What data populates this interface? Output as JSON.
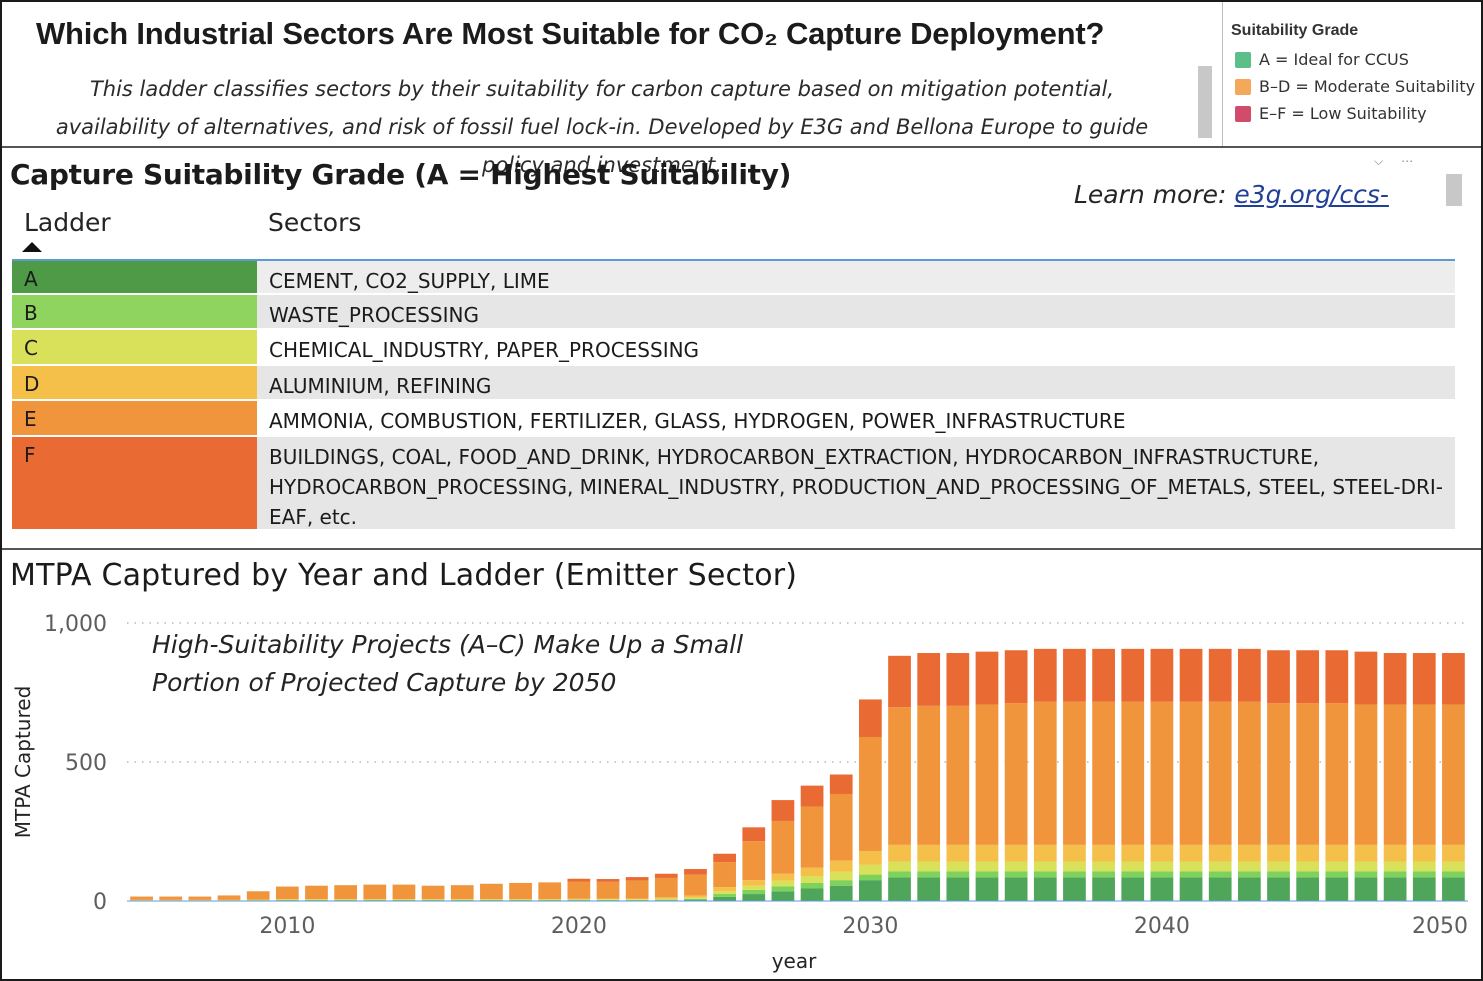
{
  "header": {
    "title": "Which Industrial Sectors Are Most Suitable for CO₂ Capture Deployment?",
    "subtitle": "This ladder classifies sectors by their suitability for carbon capture based on mitigation potential, availability of alternatives, and risk of fossil fuel lock-in. Developed by E3G and Bellona Europe to guide policy and investment."
  },
  "legend": {
    "title": "Suitability Grade",
    "items": [
      {
        "label": "A = Ideal for CCUS",
        "color": "#5cbf8a"
      },
      {
        "label": "B–D = Moderate Suitability",
        "color": "#f4a95a"
      },
      {
        "label": "E–F = Low Suitability",
        "color": "#d14b6a"
      }
    ]
  },
  "table": {
    "title": "Capture Suitability Grade (A = Highest Suitability)",
    "learn_more_prefix": "Learn more: ",
    "learn_more_link": "e3g.org/ccs-",
    "columns": [
      "Ladder",
      "Sectors"
    ],
    "rows": [
      {
        "ladder": "A",
        "color": "#4e9a47",
        "sectors": "CEMENT, CO2_SUPPLY, LIME"
      },
      {
        "ladder": "B",
        "color": "#8fd45e",
        "sectors": "WASTE_PROCESSING"
      },
      {
        "ladder": "C",
        "color": "#d9e05a",
        "sectors": "CHEMICAL_INDUSTRY, PAPER_PROCESSING"
      },
      {
        "ladder": "D",
        "color": "#f5c04a",
        "sectors": "ALUMINIUM, REFINING"
      },
      {
        "ladder": "E",
        "color": "#f1953d",
        "sectors": "AMMONIA, COMBUSTION, FERTILIZER, GLASS, HYDROGEN, POWER_INFRASTRUCTURE"
      },
      {
        "ladder": "F",
        "color": "#e96a33",
        "sectors": "BUILDINGS, COAL, FOOD_AND_DRINK, HYDROCARBON_EXTRACTION, HYDROCARBON_INFRASTRUCTURE, HYDROCARBON_PROCESSING, MINERAL_INDUSTRY, PRODUCTION_AND_PROCESSING_OF_METALS, STEEL, STEEL-DRI-EAF, etc."
      }
    ]
  },
  "chart_data": {
    "type": "bar",
    "stacked": true,
    "title": "MTPA Captured by Year and Ladder (Emitter Sector)",
    "annotation": "High-Suitability Projects (A–C) Make Up a Small Portion of Projected Capture by 2050",
    "xlabel": "year",
    "ylabel": "MTPA Captured",
    "ylim": [
      0,
      1000
    ],
    "yticks": [
      0,
      500,
      1000
    ],
    "ytick_labels": [
      "0",
      "500",
      "1,000"
    ],
    "xticks": [
      2010,
      2020,
      2030,
      2040,
      2050
    ],
    "x": [
      2005,
      2006,
      2007,
      2008,
      2009,
      2010,
      2011,
      2012,
      2013,
      2014,
      2015,
      2016,
      2017,
      2018,
      2019,
      2020,
      2021,
      2022,
      2023,
      2024,
      2025,
      2026,
      2027,
      2028,
      2029,
      2030,
      2031,
      2032,
      2033,
      2034,
      2035,
      2036,
      2037,
      2038,
      2039,
      2040,
      2041,
      2042,
      2043,
      2044,
      2045,
      2046,
      2047,
      2048,
      2049,
      2050
    ],
    "series": [
      {
        "name": "A",
        "color": "#4fa65a",
        "values": [
          1,
          1,
          1,
          1,
          2,
          2,
          2,
          2,
          2,
          2,
          2,
          2,
          2,
          2,
          2,
          2,
          2,
          2,
          3,
          5,
          15,
          25,
          35,
          45,
          55,
          75,
          85,
          85,
          85,
          85,
          85,
          85,
          85,
          85,
          85,
          85,
          85,
          85,
          85,
          85,
          85,
          85,
          85,
          85,
          85,
          85
        ]
      },
      {
        "name": "B",
        "color": "#7ed15a",
        "values": [
          1,
          1,
          1,
          1,
          1,
          2,
          2,
          2,
          2,
          2,
          2,
          2,
          2,
          2,
          2,
          2,
          2,
          2,
          2,
          3,
          10,
          15,
          18,
          20,
          20,
          20,
          22,
          22,
          22,
          22,
          22,
          22,
          22,
          22,
          22,
          22,
          22,
          22,
          22,
          22,
          22,
          22,
          22,
          22,
          22,
          22
        ]
      },
      {
        "name": "C",
        "color": "#d9e05a",
        "values": [
          1,
          1,
          1,
          1,
          1,
          1,
          1,
          1,
          1,
          1,
          1,
          1,
          1,
          1,
          1,
          1,
          2,
          2,
          3,
          4,
          10,
          15,
          20,
          25,
          30,
          35,
          35,
          35,
          35,
          35,
          35,
          35,
          35,
          35,
          35,
          35,
          35,
          35,
          35,
          35,
          35,
          35,
          35,
          35,
          35,
          35
        ]
      },
      {
        "name": "D",
        "color": "#f5c04a",
        "values": [
          1,
          1,
          1,
          1,
          1,
          2,
          2,
          2,
          2,
          2,
          2,
          2,
          2,
          2,
          2,
          3,
          3,
          3,
          5,
          8,
          15,
          20,
          25,
          30,
          40,
          50,
          60,
          60,
          60,
          60,
          60,
          60,
          60,
          60,
          60,
          60,
          60,
          60,
          60,
          60,
          60,
          60,
          60,
          60,
          60,
          60
        ]
      },
      {
        "name": "E",
        "color": "#f1953d",
        "values": [
          12,
          12,
          12,
          16,
          30,
          45,
          48,
          50,
          52,
          52,
          48,
          50,
          55,
          58,
          60,
          62,
          60,
          65,
          70,
          75,
          90,
          140,
          190,
          220,
          240,
          410,
          495,
          500,
          500,
          505,
          510,
          515,
          515,
          515,
          515,
          515,
          515,
          515,
          515,
          510,
          510,
          510,
          505,
          505,
          505,
          505
        ]
      },
      {
        "name": "F",
        "color": "#e96a33",
        "values": [
          0,
          0,
          0,
          0,
          0,
          0,
          0,
          0,
          0,
          0,
          0,
          0,
          0,
          0,
          0,
          10,
          10,
          12,
          15,
          20,
          30,
          50,
          75,
          75,
          70,
          135,
          185,
          190,
          190,
          190,
          190,
          190,
          190,
          190,
          190,
          190,
          190,
          190,
          190,
          190,
          190,
          190,
          190,
          185,
          185,
          185
        ]
      }
    ]
  }
}
